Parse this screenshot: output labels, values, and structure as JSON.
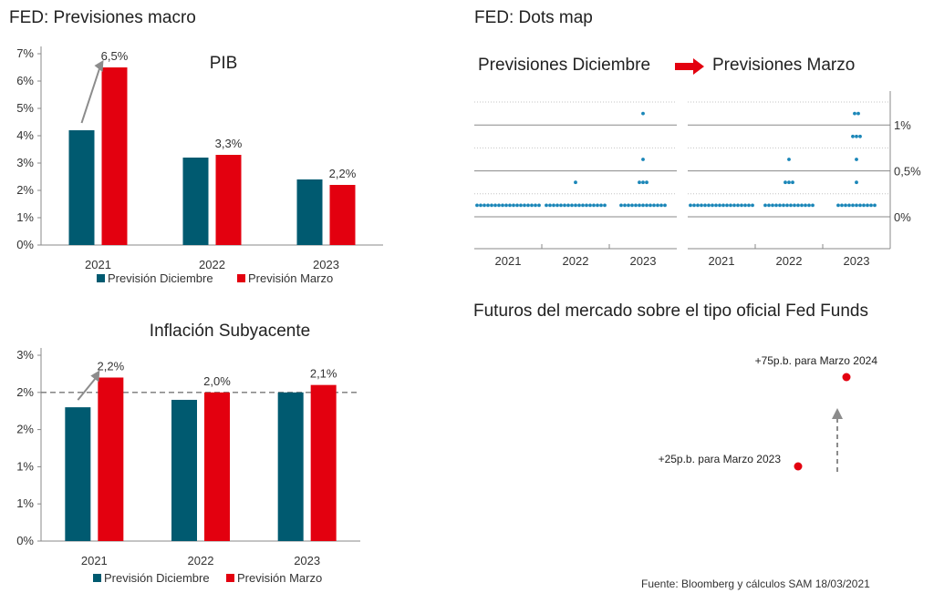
{
  "macro_section": {
    "title": "FED: Previsiones macro"
  },
  "dots_section": {
    "title": "FED: Dots map",
    "label_left": "Previsiones Diciembre",
    "label_right": "Previsiones Marzo"
  },
  "futures_section": {
    "title": "Futuros del mercado sobre el tipo oficial Fed Funds"
  },
  "source": "Fuente: Bloomberg y cálculos SAM 18/03/2021",
  "colors": {
    "dec": "#005a70",
    "mar": "#e3000f",
    "dots": "#1a86b8",
    "arrow": "#8c8c8c",
    "axis": "#888888"
  },
  "chart_data": [
    {
      "id": "pib",
      "type": "bar",
      "title": "PIB",
      "categories": [
        "2021",
        "2022",
        "2023"
      ],
      "series": [
        {
          "name": "Previsión Diciembre",
          "values": [
            4.2,
            3.2,
            2.4
          ]
        },
        {
          "name": "Previsión Marzo",
          "values": [
            6.5,
            3.3,
            2.2
          ]
        }
      ],
      "data_labels": [
        "6,5%",
        "3,3%",
        "2,2%"
      ],
      "yticks": [
        "0%",
        "1%",
        "2%",
        "3%",
        "4%",
        "5%",
        "6%",
        "7%"
      ],
      "ylim": [
        0,
        7
      ],
      "legend": "bottom"
    },
    {
      "id": "inflacion",
      "type": "bar",
      "title": "Inflación Subyacente",
      "categories": [
        "2021",
        "2022",
        "2023"
      ],
      "series": [
        {
          "name": "Previsión Diciembre",
          "values": [
            1.8,
            1.9,
            2.0
          ]
        },
        {
          "name": "Previsión Marzo",
          "values": [
            2.2,
            2.0,
            2.1
          ]
        }
      ],
      "data_labels": [
        "2,2%",
        "2,0%",
        "2,1%"
      ],
      "yticks": [
        "0%",
        "1%",
        "1%",
        "2%",
        "2%",
        "3%"
      ],
      "ylim": [
        0,
        2.5
      ],
      "reference_line": 2.0,
      "legend": "bottom"
    },
    {
      "id": "dots_dec",
      "type": "scatter",
      "title": "Previsiones Diciembre",
      "categories": [
        "2021",
        "2022",
        "2023"
      ],
      "rate_levels": [
        0.125,
        0.375,
        0.625,
        0.875,
        1.125
      ],
      "dot_counts": [
        [
          18,
          0,
          0,
          0,
          0
        ],
        [
          17,
          1,
          0,
          0,
          0
        ],
        [
          13,
          3,
          1,
          0,
          1
        ]
      ],
      "ylim": [
        0,
        1.25
      ]
    },
    {
      "id": "dots_mar",
      "type": "scatter",
      "title": "Previsiones Marzo",
      "categories": [
        "2021",
        "2022",
        "2023"
      ],
      "rate_levels": [
        0.125,
        0.375,
        0.625,
        0.875,
        1.125
      ],
      "dot_counts": [
        [
          18,
          0,
          0,
          0,
          0
        ],
        [
          14,
          3,
          1,
          0,
          0
        ],
        [
          11,
          1,
          1,
          3,
          2
        ]
      ],
      "yticks": [
        "0%",
        "0,5%",
        "1%"
      ],
      "ylim": [
        0,
        1.25
      ]
    },
    {
      "id": "futures",
      "type": "scatter",
      "points": [
        {
          "label": "+25p.b. para Marzo 2023",
          "value": 25
        },
        {
          "label": "+75p.b. para Marzo 2024",
          "value": 75
        }
      ]
    }
  ]
}
